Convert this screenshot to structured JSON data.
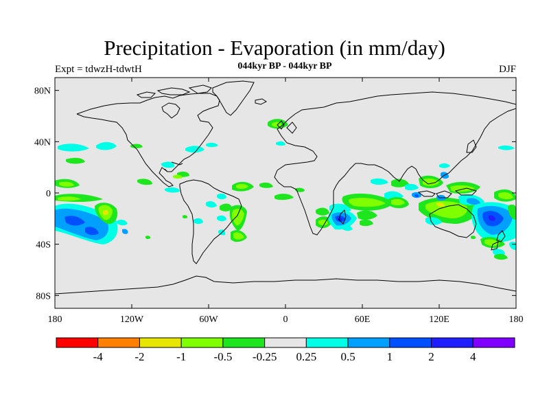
{
  "header": {
    "title": "Precipitation - Evaporation (in mm/day)",
    "subtitle": "044kyr BP - 044kyr BP",
    "experiment": "Expt = tdwzH-tdwtH",
    "season": "DJF"
  },
  "map": {
    "projection": "cylindrical equidistant",
    "lon_range": [
      -180,
      180
    ],
    "lat_range": [
      -90,
      90
    ],
    "ocean_color": "#e6e6e6",
    "coastline_color": "#000000",
    "y_ticks": [
      {
        "lat": 80,
        "label": "80N"
      },
      {
        "lat": 40,
        "label": "40N"
      },
      {
        "lat": 0,
        "label": "0"
      },
      {
        "lat": -40,
        "label": "40S"
      },
      {
        "lat": -80,
        "label": "80S"
      }
    ],
    "x_ticks": [
      {
        "lon": -180,
        "label": "180"
      },
      {
        "lon": -120,
        "label": "120W"
      },
      {
        "lon": -60,
        "label": "60W"
      },
      {
        "lon": 0,
        "label": "0"
      },
      {
        "lon": 60,
        "label": "60E"
      },
      {
        "lon": 120,
        "label": "120E"
      },
      {
        "lon": 180,
        "label": "180"
      }
    ]
  },
  "colorbar": {
    "colors": [
      "#ff0000",
      "#ff7f00",
      "#e6e600",
      "#80ff00",
      "#1ee61e",
      "#e6e6e6",
      "#00ffe6",
      "#00a0ff",
      "#0050ff",
      "#1e1eff",
      "#8000ff"
    ],
    "labels": [
      "-4",
      "-2",
      "-1",
      "-0.5",
      "-0.25",
      "0.25",
      "0.5",
      "1",
      "2",
      "4"
    ]
  },
  "chart_data": {
    "type": "heatmap",
    "title": "Precipitation - Evaporation (in mm/day)",
    "subtitle": "044kyr BP - 044kyr BP",
    "levels": [
      -4,
      -2,
      -1,
      -0.5,
      -0.25,
      0.25,
      0.5,
      1,
      2,
      4
    ],
    "anomalies": [
      {
        "lon": -155,
        "lat": -20,
        "value": -2
      },
      {
        "lon": -160,
        "lat": -28,
        "value": 1
      },
      {
        "lon": -140,
        "lat": -32,
        "value": 1
      },
      {
        "lon": -170,
        "lat": 2,
        "value": -0.5
      },
      {
        "lon": -150,
        "lat": 5,
        "value": -0.5
      },
      {
        "lon": -160,
        "lat": 35,
        "value": 0.5
      },
      {
        "lon": -140,
        "lat": 38,
        "value": -0.5
      },
      {
        "lon": -40,
        "lat": 5,
        "value": -0.5
      },
      {
        "lon": -50,
        "lat": -20,
        "value": 1
      },
      {
        "lon": -40,
        "lat": -30,
        "value": -0.5
      },
      {
        "lon": 10,
        "lat": 55,
        "value": -0.5
      },
      {
        "lon": 45,
        "lat": -20,
        "value": 2
      },
      {
        "lon": 65,
        "lat": -5,
        "value": -0.5
      },
      {
        "lon": 90,
        "lat": -8,
        "value": -0.5
      },
      {
        "lon": 120,
        "lat": 5,
        "value": -0.5
      },
      {
        "lon": 150,
        "lat": -20,
        "value": 2
      },
      {
        "lon": 170,
        "lat": -25,
        "value": -0.5
      }
    ]
  }
}
